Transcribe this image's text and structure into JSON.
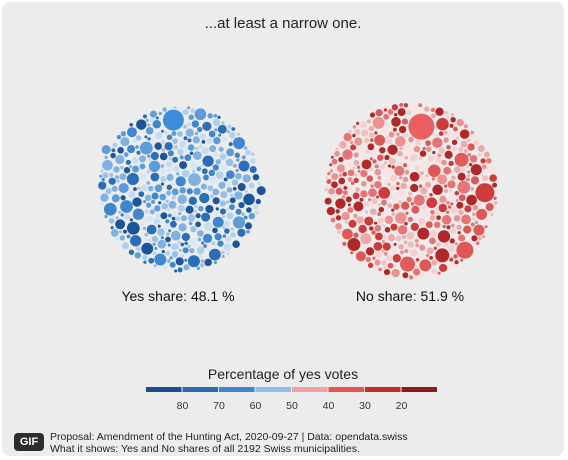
{
  "title": "...at least a narrow one.",
  "chart_data": {
    "type": "bubble-pack",
    "groups": [
      {
        "label": "Yes share: 48.1 %",
        "share": 48.1,
        "color_scheme": "blue"
      },
      {
        "label": "No share: 51.9 %",
        "share": 51.9,
        "color_scheme": "red"
      }
    ],
    "municipality_count": 2192,
    "legend": {
      "title": "Percentage of yes votes",
      "ticks": [
        "80",
        "70",
        "60",
        "50",
        "40",
        "30",
        "20"
      ],
      "colors": [
        "#1a4e8f",
        "#2c6bb4",
        "#3d86cf",
        "#8ebde8",
        "#f2a2a2",
        "#e65454",
        "#c62c2c",
        "#8c1c1c"
      ]
    }
  },
  "footer": {
    "badge": "GIF",
    "line1": "Proposal: Amendment of the Hunting Act, 2020-09-27 | Data: opendata.swiss",
    "line2": "What it shows: Yes and No shares of all 2192 Swiss municipalities."
  }
}
